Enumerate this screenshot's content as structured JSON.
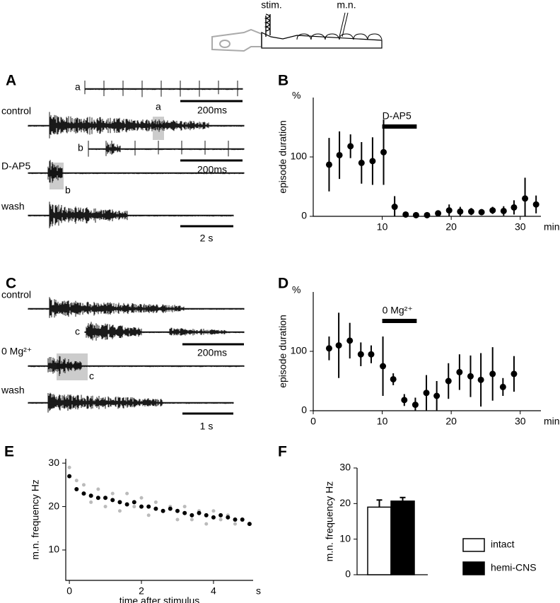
{
  "schematic": {
    "labels": [
      "stim.",
      "m.n."
    ]
  },
  "panel_a": {
    "letter": "A",
    "trace_labels": [
      "control",
      "D-AP5",
      "wash"
    ],
    "inset_labels": [
      "a",
      "b"
    ],
    "box_labels": [
      "a",
      "b"
    ],
    "scale_labels": [
      "200ms",
      "200ms",
      "2 s"
    ]
  },
  "panel_c": {
    "letter": "C",
    "trace_labels": [
      "control",
      "0 Mg²⁺",
      "wash"
    ],
    "inset_labels": [
      "c"
    ],
    "box_labels": [
      "c"
    ],
    "scale_labels": [
      "200ms",
      "1 s"
    ]
  },
  "chart_data": [
    {
      "panel": "B",
      "type": "errorbar",
      "y_unit": "%",
      "ylabel": "episode duration",
      "x_unit": "min",
      "color": "#000",
      "x": [
        2.3,
        3.8,
        5.4,
        7.0,
        8.6,
        10.2,
        11.8,
        13.4,
        14.9,
        16.5,
        18.1,
        19.7,
        21.3,
        22.9,
        24.4,
        26.0,
        27.6,
        29.1,
        30.7,
        32.3
      ],
      "values": [
        87,
        103,
        118,
        90,
        93,
        108,
        16,
        3,
        2,
        2,
        5,
        10,
        8,
        8,
        7,
        10,
        9,
        15,
        30,
        20
      ],
      "errors": [
        45,
        40,
        20,
        35,
        40,
        55,
        18,
        4,
        2,
        2,
        4,
        10,
        8,
        6,
        5,
        6,
        8,
        12,
        35,
        15
      ],
      "xlim": [
        0,
        33
      ],
      "ylim": [
        0,
        200
      ],
      "xticks": [
        10,
        20,
        30
      ],
      "yticks": [
        0,
        100
      ],
      "annotation": {
        "text": "D-AP5",
        "start": 10,
        "end": 15
      }
    },
    {
      "panel": "D",
      "type": "errorbar",
      "y_unit": "%",
      "ylabel": "episode duration",
      "x_unit": "min",
      "color": "#000",
      "x": [
        2.3,
        3.7,
        5.3,
        6.9,
        8.4,
        10.1,
        11.6,
        13.2,
        14.8,
        16.4,
        17.9,
        19.6,
        21.2,
        22.8,
        24.3,
        26.0,
        27.5,
        29.1
      ],
      "values": [
        105,
        110,
        118,
        95,
        95,
        75,
        53,
        18,
        10,
        30,
        25,
        50,
        65,
        58,
        52,
        62,
        40,
        62
      ],
      "errors": [
        20,
        55,
        30,
        20,
        15,
        50,
        10,
        10,
        12,
        30,
        25,
        30,
        30,
        35,
        45,
        45,
        15,
        30
      ],
      "xlim": [
        0,
        33
      ],
      "ylim": [
        0,
        200
      ],
      "xticks": [
        0,
        10,
        20,
        30
      ],
      "yticks": [
        0,
        100
      ],
      "annotation": {
        "text": "0 Mg²⁺",
        "start": 10,
        "end": 15
      }
    },
    {
      "panel": "E",
      "type": "scatter",
      "ylabel": "m.n. frequency Hz",
      "xlabel": "time after stimulus",
      "x_unit": "s",
      "x": [
        0,
        0.2,
        0.4,
        0.6,
        0.8,
        1.0,
        1.2,
        1.4,
        1.6,
        1.8,
        2.0,
        2.2,
        2.4,
        2.6,
        2.8,
        3.0,
        3.2,
        3.4,
        3.6,
        3.8,
        4.0,
        4.2,
        4.4,
        4.6,
        4.8,
        5.0
      ],
      "series": [
        {
          "color": "#bbbbbb",
          "values": [
            29,
            26,
            25,
            21,
            24,
            20,
            23,
            19,
            23,
            20,
            22,
            18,
            21,
            19,
            20,
            17,
            20,
            17,
            19,
            16,
            19,
            17,
            18,
            16,
            17,
            16
          ]
        },
        {
          "color": "#000000",
          "values": [
            27,
            24,
            23,
            22.5,
            22,
            22,
            21.5,
            21,
            20.5,
            21,
            20,
            20,
            19.5,
            19,
            19.5,
            19,
            18.5,
            18,
            18.5,
            18,
            17.5,
            18,
            17.5,
            17,
            17,
            16
          ]
        }
      ],
      "xlim": [
        -0.1,
        5.1
      ],
      "ylim": [
        3,
        31
      ],
      "xticks": [
        0,
        2,
        4
      ],
      "yticks": [
        10,
        20,
        30
      ]
    },
    {
      "panel": "F",
      "type": "bar",
      "ylabel": "m.n. frequency Hz",
      "series": [
        {
          "name": "intact",
          "color": "#ffffff",
          "values": [
            19
          ],
          "errors": [
            2
          ]
        },
        {
          "name": "hemi-CNS",
          "color": "#000000",
          "values": [
            20.7
          ],
          "errors": [
            1
          ]
        }
      ],
      "ylim": [
        0,
        30
      ],
      "yticks": [
        0,
        10,
        20,
        30
      ]
    }
  ]
}
